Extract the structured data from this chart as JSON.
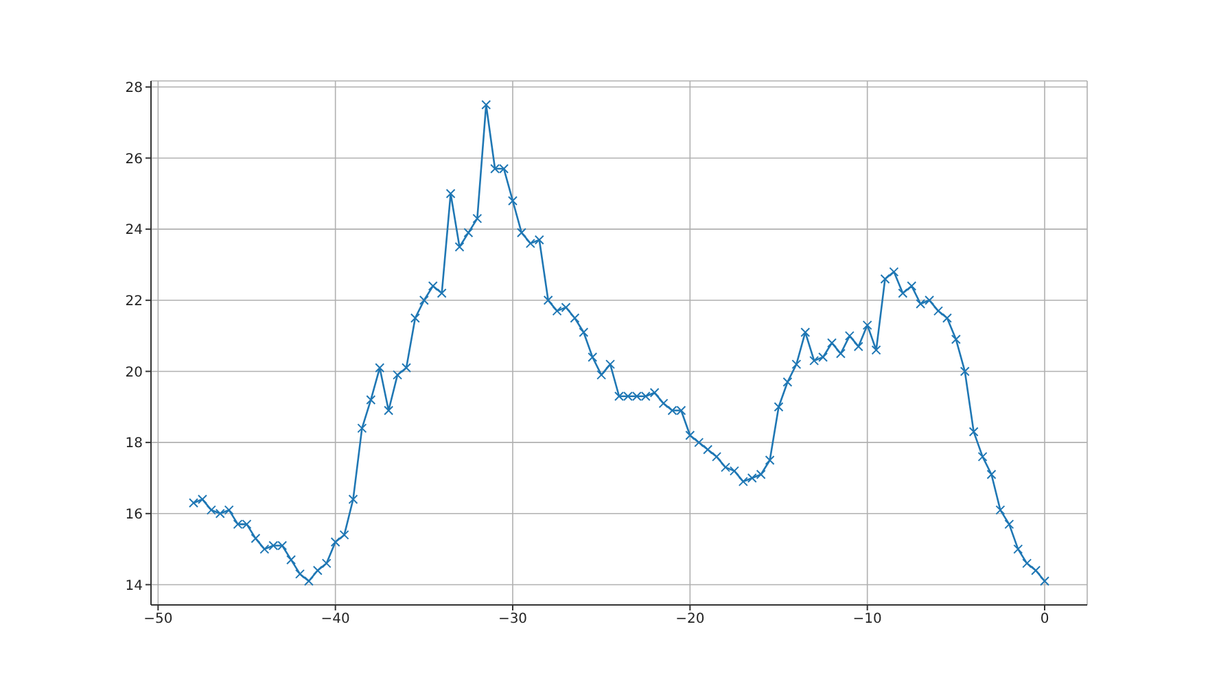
{
  "chart_data": {
    "type": "line",
    "x": [
      -48,
      -47.5,
      -47,
      -46.5,
      -46,
      -45.5,
      -45,
      -44.5,
      -44,
      -43.5,
      -43,
      -42.5,
      -42,
      -41.5,
      -41,
      -40.5,
      -40,
      -39.5,
      -39,
      -38.5,
      -38,
      -37.5,
      -37,
      -36.5,
      -36,
      -35.5,
      -35,
      -34.5,
      -34,
      -33.5,
      -33,
      -32.5,
      -32,
      -31.5,
      -31,
      -30.5,
      -30,
      -29.5,
      -29,
      -28.5,
      -28,
      -27.5,
      -27,
      -26.5,
      -26,
      -25.5,
      -25,
      -24.5,
      -24,
      -23.5,
      -23,
      -22.5,
      -22,
      -21.5,
      -21,
      -20.5,
      -20,
      -19.5,
      -19,
      -18.5,
      -18,
      -17.5,
      -17,
      -16.5,
      -16,
      -15.5,
      -15,
      -14.5,
      -14,
      -13.5,
      -13,
      -12.5,
      -12,
      -11.5,
      -11,
      -10.5,
      -10,
      -9.5,
      -9,
      -8.5,
      -8,
      -7.5,
      -7,
      -6.5,
      -6,
      -5.5,
      -5,
      -4.5,
      -4,
      -3.5,
      -3,
      -2.5,
      -2,
      -1.5,
      -1,
      -0.5,
      0
    ],
    "series": [
      {
        "color": "#1f77b4",
        "values": [
          16.3,
          16.4,
          16.1,
          16.0,
          16.1,
          15.7,
          15.7,
          15.3,
          15.0,
          15.1,
          15.1,
          14.7,
          14.3,
          14.1,
          14.4,
          14.6,
          15.2,
          15.4,
          16.4,
          18.4,
          19.2,
          20.1,
          18.9,
          19.9,
          20.1,
          21.5,
          22.0,
          22.4,
          22.2,
          25.0,
          23.5,
          23.9,
          24.3,
          27.5,
          25.7,
          25.7,
          24.8,
          23.9,
          23.6,
          23.7,
          22.0,
          21.7,
          21.8,
          21.5,
          21.1,
          20.4,
          19.9,
          20.2,
          19.3,
          19.3,
          19.3,
          19.3,
          19.4,
          19.1,
          18.9,
          18.9,
          18.2,
          18.0,
          17.8,
          17.6,
          17.3,
          17.2,
          16.9,
          17.0,
          17.1,
          17.5,
          19.0,
          19.7,
          20.2,
          21.1,
          20.3,
          20.4,
          20.8,
          20.5,
          21.0,
          20.7,
          21.3,
          20.6,
          22.6,
          22.8,
          22.2,
          22.4,
          21.9,
          22.0,
          21.7,
          21.5,
          20.9,
          20.0,
          18.3,
          17.6,
          17.1,
          16.1,
          15.7,
          15.0,
          14.6,
          14.4,
          14.1
        ]
      }
    ],
    "xlim": [
      -50.4,
      2.4
    ],
    "ylim": [
      13.43,
      28.17
    ],
    "xticks": [
      {
        "value": -50,
        "label": "−50"
      },
      {
        "value": -40,
        "label": "−40"
      },
      {
        "value": -30,
        "label": "−30"
      },
      {
        "value": -20,
        "label": "−20"
      },
      {
        "value": -10,
        "label": "−10"
      },
      0
    ],
    "yticks": [
      14,
      16,
      18,
      20,
      22,
      24,
      26,
      28
    ],
    "grid": true,
    "marker": "cross",
    "line_style": "solid"
  }
}
